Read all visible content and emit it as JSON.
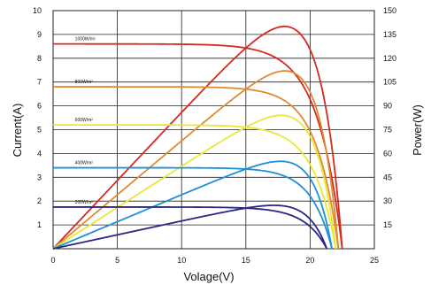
{
  "chart_data": {
    "type": "line",
    "title": "",
    "xlabel": "Volage(V)",
    "ylabel": "Current(A)",
    "y2label": "Power(W)",
    "xlim": [
      0,
      25
    ],
    "ylim": [
      0,
      10
    ],
    "y2lim": [
      0,
      150
    ],
    "xticks": [
      "0",
      "5",
      "10",
      "15",
      "20",
      "25"
    ],
    "yticks": [
      "1",
      "2",
      "3",
      "4",
      "5",
      "6",
      "7",
      "8",
      "9",
      "10"
    ],
    "y2ticks": [
      "15",
      "30",
      "45",
      "60",
      "75",
      "90",
      "105",
      "120",
      "135",
      "150"
    ],
    "grid": true,
    "series": [
      {
        "name": "1000W/m²",
        "color": "#d42a22",
        "isc": 8.6,
        "voc": 22.5,
        "pmax": 140
      },
      {
        "name": "800W/m²",
        "color": "#e08a33",
        "isc": 6.8,
        "voc": 22.2,
        "pmax": 112
      },
      {
        "name": "600W/m²",
        "color": "#e8e83a",
        "isc": 5.2,
        "voc": 22.0,
        "pmax": 84
      },
      {
        "name": "400W/m²",
        "color": "#1e90d8",
        "isc": 3.4,
        "voc": 21.7,
        "pmax": 55
      },
      {
        "name": "200W/m²",
        "color": "#2b2685",
        "isc": 1.75,
        "voc": 21.3,
        "pmax": 27
      }
    ]
  }
}
